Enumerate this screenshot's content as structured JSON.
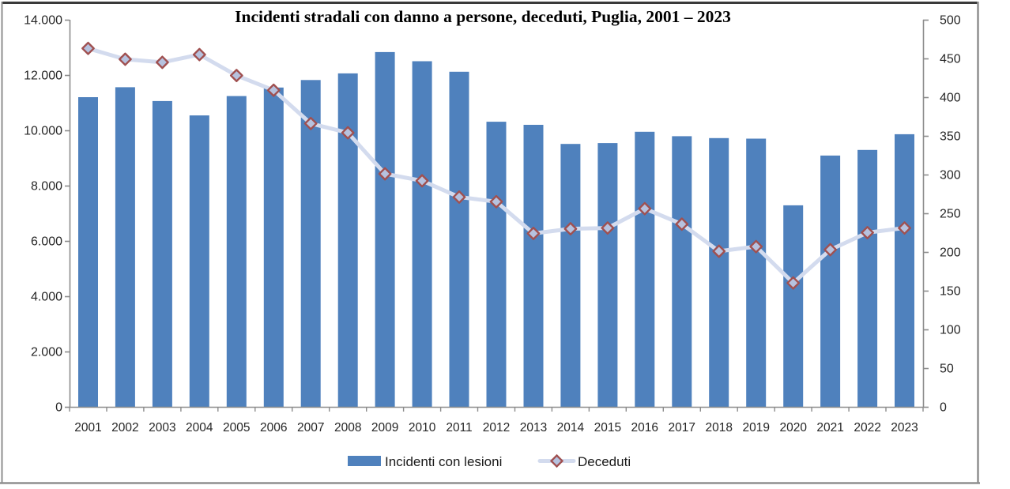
{
  "title": "Incidenti stradali con danno a persone, deceduti, Puglia, 2001 – 2023",
  "legend": {
    "series1_label": "Incidenti con lesioni",
    "series2_label": "Deceduti"
  },
  "colors": {
    "bar_fill": "#4F81BD",
    "line_stroke": "#D3DBEE",
    "marker_fill": "#B6C2DF",
    "marker_border": "#A05050",
    "axis_line": "#8C8C8C",
    "frame_border": "#8F8F8F",
    "frame_top_border": "#3A3A3A",
    "text": "#262626"
  },
  "chart_data": {
    "type": "combo",
    "title": "Incidenti stradali con danno a persone, deceduti, Puglia, 2001 – 2023",
    "categories": [
      "2001",
      "2002",
      "2003",
      "2004",
      "2005",
      "2006",
      "2007",
      "2008",
      "2009",
      "2010",
      "2011",
      "2012",
      "2013",
      "2014",
      "2015",
      "2016",
      "2017",
      "2018",
      "2019",
      "2020",
      "2021",
      "2022",
      "2023"
    ],
    "series": [
      {
        "name": "Incidenti con lesioni",
        "type": "bar",
        "axis": "left",
        "values": [
          11200,
          11560,
          11060,
          10540,
          11240,
          11550,
          11820,
          12060,
          12830,
          12500,
          12120,
          10310,
          10200,
          9510,
          9540,
          9950,
          9790,
          9720,
          9700,
          7290,
          9090,
          9290,
          9860
        ]
      },
      {
        "name": "Deceduti",
        "type": "line",
        "axis": "right",
        "values": [
          463,
          449,
          445,
          455,
          428,
          409,
          366,
          354,
          301,
          292,
          271,
          265,
          224,
          230,
          231,
          256,
          236,
          201,
          207,
          160,
          203,
          225,
          231
        ]
      }
    ],
    "left_axis": {
      "min": 0,
      "max": 14000,
      "step": 2000,
      "tick_labels_top_to_bottom": [
        "14.000",
        "12.000",
        "10.000",
        "8.000",
        "6.000",
        "4.000",
        "2.000",
        "0"
      ]
    },
    "right_axis": {
      "min": 0,
      "max": 500,
      "step": 50,
      "tick_labels_top_to_bottom": [
        "500",
        "450",
        "400",
        "350",
        "300",
        "250",
        "200",
        "150",
        "100",
        "50",
        "0"
      ]
    },
    "grid": "off",
    "legend_position": "bottom"
  }
}
